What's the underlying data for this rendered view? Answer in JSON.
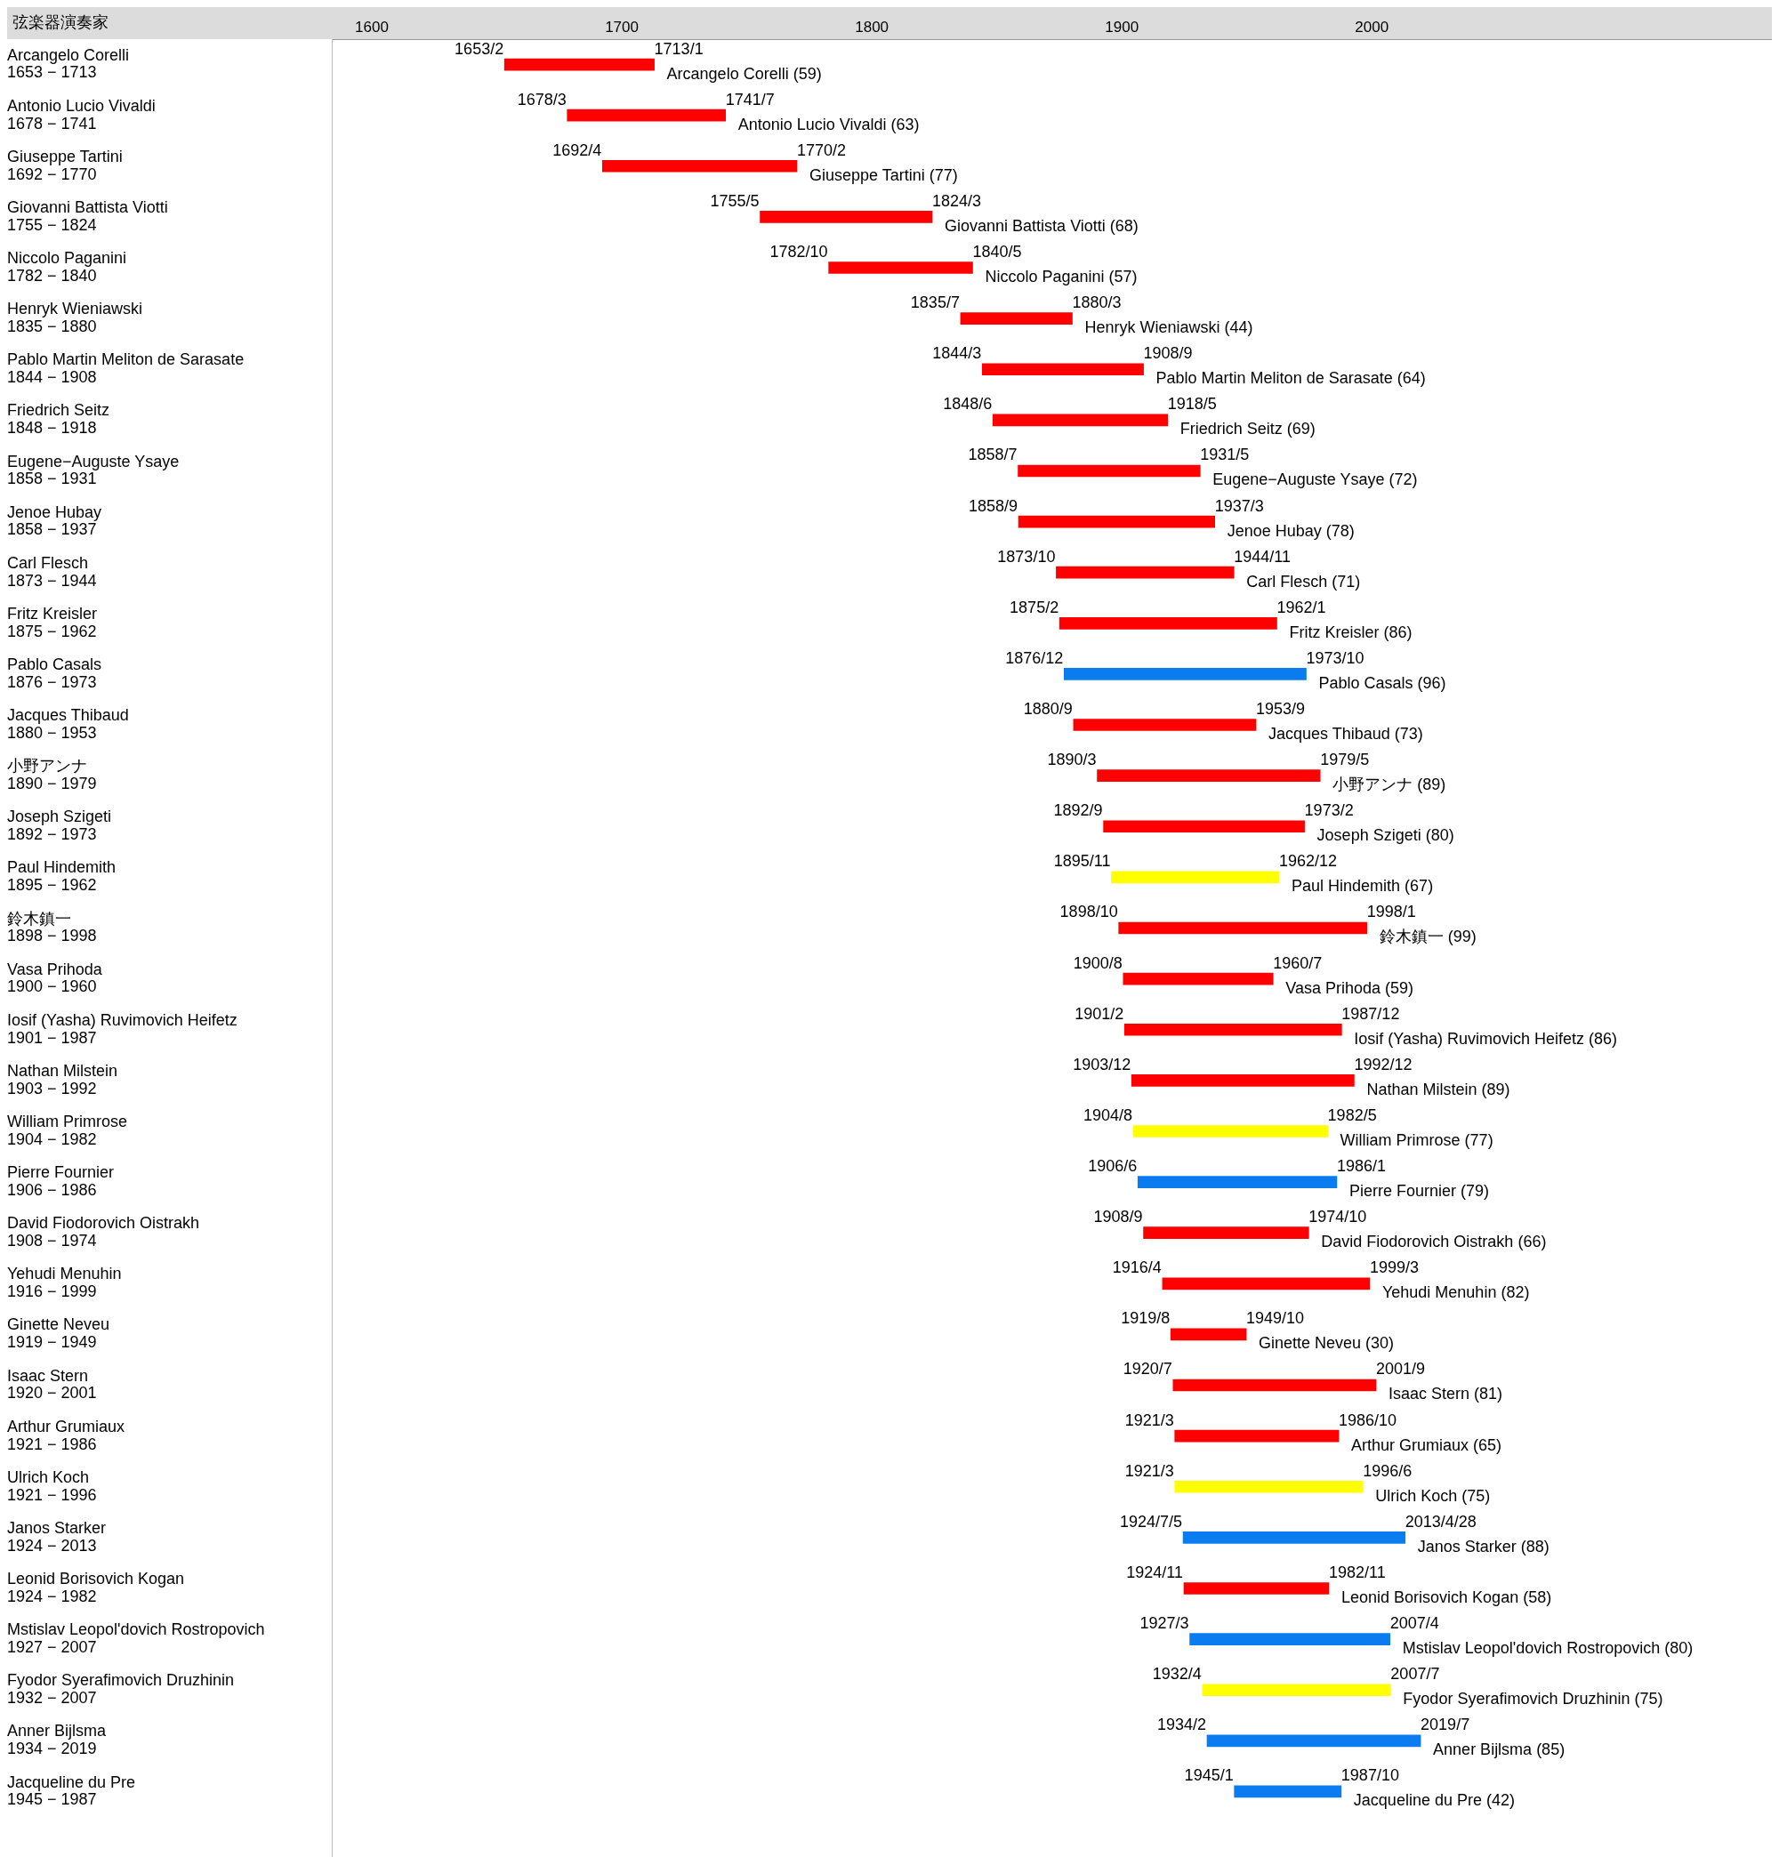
{
  "chart_data": {
    "type": "bar",
    "orientation": "horizontal",
    "ylabel": "弦楽器演奏家",
    "categories": [
      "Arcangelo Corelli\n1653 − 1713",
      "Antonio Lucio Vivaldi\n1678 − 1741",
      "Giuseppe Tartini\n1692 − 1770",
      "Giovanni Battista Viotti\n1755 − 1824",
      "Niccolo Paganini\n1782 − 1840",
      "Henryk Wieniawski\n1835 − 1880",
      "Pablo Martin Meliton de Sarasate\n1844 − 1908",
      "Friedrich Seitz\n1848 − 1918",
      "Eugene−Auguste Ysaye\n1858 − 1931",
      "Jenoe Hubay\n1858 − 1937",
      "Carl Flesch\n1873 − 1944",
      "Fritz Kreisler\n1875 − 1962",
      "Pablo Casals\n1876 − 1973",
      "Jacques Thibaud\n1880 − 1953",
      "小野アンナ\n1890 − 1979",
      "Joseph Szigeti\n1892 − 1973",
      "Paul Hindemith\n1895 − 1962",
      "鈴木鎮一\n1898 − 1998",
      "Vasa Prihoda\n1900 − 1960",
      "Iosif (Yasha) Ruvimovich Heifetz\n1901 − 1987",
      "Nathan Milstein\n1903 − 1992",
      "William Primrose\n1904 − 1982",
      "Pierre Fournier\n1906 − 1986",
      "David Fiodorovich Oistrakh\n1908 − 1974",
      "Yehudi Menuhin\n1916 − 1999",
      "Ginette Neveu\n1919 − 1949",
      "Isaac Stern\n1920 − 2001",
      "Arthur Grumiaux\n1921 − 1986",
      "Ulrich Koch\n1921 − 1996",
      "Janos Starker\n1924 − 2013",
      "Leonid Borisovich Kogan\n1924 − 1982",
      "Mstislav Leopol'dovich Rostropovich\n1927 − 2007",
      "Fyodor Syerafimovich Druzhinin\n1932 − 2007",
      "Anner Bijlsma\n1934 − 2019",
      "Jacqueline du Pre\n1945 − 1987"
    ],
    "base": [
      1653.08,
      1678.17,
      1692.25,
      1755.33,
      1782.75,
      1835.5,
      1844.17,
      1848.42,
      1858.5,
      1858.67,
      1873.75,
      1875.08,
      1876.92,
      1880.67,
      1890.17,
      1892.67,
      1895.83,
      1898.75,
      1900.58,
      1901.08,
      1903.92,
      1904.58,
      1906.42,
      1908.67,
      1916.25,
      1919.58,
      1920.5,
      1921.17,
      1921.17,
      1924.51,
      1924.83,
      1927.17,
      1932.25,
      1934.08,
      1945.0
    ],
    "values": [
      59.92,
      63.33,
      77.83,
      68.84,
      57.58,
      44.67,
      64.5,
      69.91,
      72.83,
      78.5,
      71.08,
      86.92,
      96.83,
      73,
      89.16,
      80.41,
      67.09,
      99.25,
      59.92,
      86.84,
      89,
      77.75,
      79.58,
      66.08,
      82.92,
      30.17,
      81.17,
      65.58,
      75.25,
      88.81,
      58,
      80.08,
      75.25,
      85.42,
      42.75
    ],
    "colors": [
      "#ff0000",
      "#ff0000",
      "#ff0000",
      "#ff0000",
      "#ff0000",
      "#ff0000",
      "#ff0000",
      "#ff0000",
      "#ff0000",
      "#ff0000",
      "#ff0000",
      "#ff0000",
      "#0a7cf0",
      "#ff0000",
      "#ff0000",
      "#ff0000",
      "#ffff00",
      "#ff0000",
      "#ff0000",
      "#ff0000",
      "#ff0000",
      "#ffff00",
      "#0a7cf0",
      "#ff0000",
      "#ff0000",
      "#ff0000",
      "#ff0000",
      "#ff0000",
      "#ffff00",
      "#0a7cf0",
      "#ff0000",
      "#0a7cf0",
      "#ffff00",
      "#0a7cf0",
      "#0a7cf0"
    ],
    "xlim": [
      1584,
      2160
    ],
    "xticks": [
      1600,
      1700,
      1800,
      1900,
      2000
    ],
    "annotations": [
      {
        "text": "1653/2",
        "x": 1653.08,
        "y": "Arcangelo Corelli\n1653 − 1713"
      },
      {
        "text": "1713/1",
        "x": 1713.0,
        "y": "Arcangelo Corelli\n1653 − 1713"
      },
      {
        "text": "Arcangelo Corelli (59)",
        "x": 1713.0,
        "y": "Arcangelo Corelli\n1653 − 1713"
      },
      {
        "text": "1678/3",
        "x": 1678.17,
        "y": "Antonio Lucio Vivaldi\n1678 − 1741"
      },
      {
        "text": "1741/7",
        "x": 1741.5,
        "y": "Antonio Lucio Vivaldi\n1678 − 1741"
      },
      {
        "text": "Antonio Lucio Vivaldi (63)",
        "x": 1741.5,
        "y": "Antonio Lucio Vivaldi\n1678 − 1741"
      },
      {
        "text": "1692/4",
        "x": 1692.25,
        "y": "Giuseppe Tartini\n1692 − 1770"
      },
      {
        "text": "1770/2",
        "x": 1770.08,
        "y": "Giuseppe Tartini\n1692 − 1770"
      },
      {
        "text": "Giuseppe Tartini (77)",
        "x": 1770.08,
        "y": "Giuseppe Tartini\n1692 − 1770"
      },
      {
        "text": "1755/5",
        "x": 1755.33,
        "y": "Giovanni Battista Viotti\n1755 − 1824"
      },
      {
        "text": "1824/3",
        "x": 1824.17,
        "y": "Giovanni Battista Viotti\n1755 − 1824"
      },
      {
        "text": "Giovanni Battista Viotti (68)",
        "x": 1824.17,
        "y": "Giovanni Battista Viotti\n1755 − 1824"
      },
      {
        "text": "1782/10",
        "x": 1782.75,
        "y": "Niccolo Paganini\n1782 − 1840"
      },
      {
        "text": "1840/5",
        "x": 1840.33,
        "y": "Niccolo Paganini\n1782 − 1840"
      },
      {
        "text": "Niccolo Paganini (57)",
        "x": 1840.33,
        "y": "Niccolo Paganini\n1782 − 1840"
      },
      {
        "text": "1835/7",
        "x": 1835.5,
        "y": "Henryk Wieniawski\n1835 − 1880"
      },
      {
        "text": "1880/3",
        "x": 1880.17,
        "y": "Henryk Wieniawski\n1835 − 1880"
      },
      {
        "text": "Henryk Wieniawski (44)",
        "x": 1880.17,
        "y": "Henryk Wieniawski\n1835 − 1880"
      },
      {
        "text": "1844/3",
        "x": 1844.17,
        "y": "Pablo Martin Meliton de Sarasate\n1844 − 1908"
      },
      {
        "text": "1908/9",
        "x": 1908.67,
        "y": "Pablo Martin Meliton de Sarasate\n1844 − 1908"
      },
      {
        "text": "Pablo Martin Meliton de Sarasate (64)",
        "x": 1908.67,
        "y": "Pablo Martin Meliton de Sarasate\n1844 − 1908"
      },
      {
        "text": "1848/6",
        "x": 1848.42,
        "y": "Friedrich Seitz\n1848 − 1918"
      },
      {
        "text": "1918/5",
        "x": 1918.33,
        "y": "Friedrich Seitz\n1848 − 1918"
      },
      {
        "text": "Friedrich Seitz (69)",
        "x": 1918.33,
        "y": "Friedrich Seitz\n1848 − 1918"
      },
      {
        "text": "1858/7",
        "x": 1858.5,
        "y": "Eugene−Auguste Ysaye\n1858 − 1931"
      },
      {
        "text": "1931/5",
        "x": 1931.33,
        "y": "Eugene−Auguste Ysaye\n1858 − 1931"
      },
      {
        "text": "Eugene−Auguste Ysaye (72)",
        "x": 1931.33,
        "y": "Eugene−Auguste Ysaye\n1858 − 1931"
      },
      {
        "text": "1858/9",
        "x": 1858.67,
        "y": "Jenoe Hubay\n1858 − 1937"
      },
      {
        "text": "1937/3",
        "x": 1937.17,
        "y": "Jenoe Hubay\n1858 − 1937"
      },
      {
        "text": "Jenoe Hubay (78)",
        "x": 1937.17,
        "y": "Jenoe Hubay\n1858 − 1937"
      },
      {
        "text": "1873/10",
        "x": 1873.75,
        "y": "Carl Flesch\n1873 − 1944"
      },
      {
        "text": "1944/11",
        "x": 1944.83,
        "y": "Carl Flesch\n1873 − 1944"
      },
      {
        "text": "Carl Flesch (71)",
        "x": 1944.83,
        "y": "Carl Flesch\n1873 − 1944"
      },
      {
        "text": "1875/2",
        "x": 1875.08,
        "y": "Fritz Kreisler\n1875 − 1962"
      },
      {
        "text": "1962/1",
        "x": 1962.0,
        "y": "Fritz Kreisler\n1875 − 1962"
      },
      {
        "text": "Fritz Kreisler (86)",
        "x": 1962.0,
        "y": "Fritz Kreisler\n1875 − 1962"
      },
      {
        "text": "1876/12",
        "x": 1876.92,
        "y": "Pablo Casals\n1876 − 1973"
      },
      {
        "text": "1973/10",
        "x": 1973.75,
        "y": "Pablo Casals\n1876 − 1973"
      },
      {
        "text": "Pablo Casals (96)",
        "x": 1973.75,
        "y": "Pablo Casals\n1876 − 1973"
      },
      {
        "text": "1880/9",
        "x": 1880.67,
        "y": "Jacques Thibaud\n1880 − 1953"
      },
      {
        "text": "1953/9",
        "x": 1953.67,
        "y": "Jacques Thibaud\n1880 − 1953"
      },
      {
        "text": "Jacques Thibaud (73)",
        "x": 1953.67,
        "y": "Jacques Thibaud\n1880 − 1953"
      },
      {
        "text": "1890/3",
        "x": 1890.17,
        "y": "小野アンナ\n1890 − 1979"
      },
      {
        "text": "1979/5",
        "x": 1979.33,
        "y": "小野アンナ\n1890 − 1979"
      },
      {
        "text": "小野アンナ (89)",
        "x": 1979.33,
        "y": "小野アンナ\n1890 − 1979"
      },
      {
        "text": "1892/9",
        "x": 1892.67,
        "y": "Joseph Szigeti\n1892 − 1973"
      },
      {
        "text": "1973/2",
        "x": 1973.08,
        "y": "Joseph Szigeti\n1892 − 1973"
      },
      {
        "text": "Joseph Szigeti (80)",
        "x": 1973.08,
        "y": "Joseph Szigeti\n1892 − 1973"
      },
      {
        "text": "1895/11",
        "x": 1895.83,
        "y": "Paul Hindemith\n1895 − 1962"
      },
      {
        "text": "1962/12",
        "x": 1962.92,
        "y": "Paul Hindemith\n1895 − 1962"
      },
      {
        "text": "Paul Hindemith (67)",
        "x": 1962.92,
        "y": "Paul Hindemith\n1895 − 1962"
      },
      {
        "text": "1898/10",
        "x": 1898.75,
        "y": "鈴木鎮一\n1898 − 1998"
      },
      {
        "text": "1998/1",
        "x": 1998.0,
        "y": "鈴木鎮一\n1898 − 1998"
      },
      {
        "text": "鈴木鎮一 (99)",
        "x": 1998.0,
        "y": "鈴木鎮一\n1898 − 1998"
      },
      {
        "text": "1900/8",
        "x": 1900.58,
        "y": "Vasa Prihoda\n1900 − 1960"
      },
      {
        "text": "1960/7",
        "x": 1960.5,
        "y": "Vasa Prihoda\n1900 − 1960"
      },
      {
        "text": "Vasa Prihoda (59)",
        "x": 1960.5,
        "y": "Vasa Prihoda\n1900 − 1960"
      },
      {
        "text": "1901/2",
        "x": 1901.08,
        "y": "Iosif (Yasha) Ruvimovich Heifetz\n1901 − 1987"
      },
      {
        "text": "1987/12",
        "x": 1987.92,
        "y": "Iosif (Yasha) Ruvimovich Heifetz\n1901 − 1987"
      },
      {
        "text": "Iosif (Yasha) Ruvimovich Heifetz (86)",
        "x": 1987.92,
        "y": "Iosif (Yasha) Ruvimovich Heifetz\n1901 − 1987"
      },
      {
        "text": "1903/12",
        "x": 1903.92,
        "y": "Nathan Milstein\n1903 − 1992"
      },
      {
        "text": "1992/12",
        "x": 1992.92,
        "y": "Nathan Milstein\n1903 − 1992"
      },
      {
        "text": "Nathan Milstein (89)",
        "x": 1992.92,
        "y": "Nathan Milstein\n1903 − 1992"
      },
      {
        "text": "1904/8",
        "x": 1904.58,
        "y": "William Primrose\n1904 − 1982"
      },
      {
        "text": "1982/5",
        "x": 1982.33,
        "y": "William Primrose\n1904 − 1982"
      },
      {
        "text": "William Primrose (77)",
        "x": 1982.33,
        "y": "William Primrose\n1904 − 1982"
      },
      {
        "text": "1906/6",
        "x": 1906.42,
        "y": "Pierre Fournier\n1906 − 1986"
      },
      {
        "text": "1986/1",
        "x": 1986.0,
        "y": "Pierre Fournier\n1906 − 1986"
      },
      {
        "text": "Pierre Fournier (79)",
        "x": 1986.0,
        "y": "Pierre Fournier\n1906 − 1986"
      },
      {
        "text": "1908/9",
        "x": 1908.67,
        "y": "David Fiodorovich Oistrakh\n1908 − 1974"
      },
      {
        "text": "1974/10",
        "x": 1974.75,
        "y": "David Fiodorovich Oistrakh\n1908 − 1974"
      },
      {
        "text": "David Fiodorovich Oistrakh (66)",
        "x": 1974.75,
        "y": "David Fiodorovich Oistrakh\n1908 − 1974"
      },
      {
        "text": "1916/4",
        "x": 1916.25,
        "y": "Yehudi Menuhin\n1916 − 1999"
      },
      {
        "text": "1999/3",
        "x": 1999.17,
        "y": "Yehudi Menuhin\n1916 − 1999"
      },
      {
        "text": "Yehudi Menuhin (82)",
        "x": 1999.17,
        "y": "Yehudi Menuhin\n1916 − 1999"
      },
      {
        "text": "1919/8",
        "x": 1919.58,
        "y": "Ginette Neveu\n1919 − 1949"
      },
      {
        "text": "1949/10",
        "x": 1949.75,
        "y": "Ginette Neveu\n1919 − 1949"
      },
      {
        "text": "Ginette Neveu (30)",
        "x": 1949.75,
        "y": "Ginette Neveu\n1919 − 1949"
      },
      {
        "text": "1920/7",
        "x": 1920.5,
        "y": "Isaac Stern\n1920 − 2001"
      },
      {
        "text": "2001/9",
        "x": 2001.67,
        "y": "Isaac Stern\n1920 − 2001"
      },
      {
        "text": "Isaac Stern (81)",
        "x": 2001.67,
        "y": "Isaac Stern\n1920 − 2001"
      },
      {
        "text": "1921/3",
        "x": 1921.17,
        "y": "Arthur Grumiaux\n1921 − 1986"
      },
      {
        "text": "1986/10",
        "x": 1986.75,
        "y": "Arthur Grumiaux\n1921 − 1986"
      },
      {
        "text": "Arthur Grumiaux (65)",
        "x": 1986.75,
        "y": "Arthur Grumiaux\n1921 − 1986"
      },
      {
        "text": "1921/3",
        "x": 1921.17,
        "y": "Ulrich Koch\n1921 − 1996"
      },
      {
        "text": "1996/6",
        "x": 1996.42,
        "y": "Ulrich Koch\n1921 − 1996"
      },
      {
        "text": "Ulrich Koch (75)",
        "x": 1996.42,
        "y": "Ulrich Koch\n1921 − 1996"
      },
      {
        "text": "1924/7/5",
        "x": 1924.51,
        "y": "Janos Starker\n1924 − 2013"
      },
      {
        "text": "2013/4/28",
        "x": 2013.32,
        "y": "Janos Starker\n1924 − 2013"
      },
      {
        "text": "Janos Starker (88)",
        "x": 2013.32,
        "y": "Janos Starker\n1924 − 2013"
      },
      {
        "text": "1924/11",
        "x": 1924.83,
        "y": "Leonid Borisovich Kogan\n1924 − 1982"
      },
      {
        "text": "1982/11",
        "x": 1982.83,
        "y": "Leonid Borisovich Kogan\n1924 − 1982"
      },
      {
        "text": "Leonid Borisovich Kogan (58)",
        "x": 1982.83,
        "y": "Leonid Borisovich Kogan\n1924 − 1982"
      },
      {
        "text": "1927/3",
        "x": 1927.17,
        "y": "Mstislav Leopol'dovich Rostropovich\n1927 − 2007"
      },
      {
        "text": "2007/4",
        "x": 2007.25,
        "y": "Mstislav Leopol'dovich Rostropovich\n1927 − 2007"
      },
      {
        "text": "Mstislav Leopol'dovich Rostropovich (80)",
        "x": 2007.25,
        "y": "Mstislav Leopol'dovich Rostropovich\n1927 − 2007"
      },
      {
        "text": "1932/4",
        "x": 1932.25,
        "y": "Fyodor Syerafimovich Druzhinin\n1932 − 2007"
      },
      {
        "text": "2007/7",
        "x": 2007.5,
        "y": "Fyodor Syerafimovich Druzhinin\n1932 − 2007"
      },
      {
        "text": "Fyodor Syerafimovich Druzhinin (75)",
        "x": 2007.5,
        "y": "Fyodor Syerafimovich Druzhinin\n1932 − 2007"
      },
      {
        "text": "1934/2",
        "x": 1934.08,
        "y": "Anner Bijlsma\n1934 − 2019"
      },
      {
        "text": "2019/7",
        "x": 2019.5,
        "y": "Anner Bijlsma\n1934 − 2019"
      },
      {
        "text": "Anner Bijlsma (85)",
        "x": 2019.5,
        "y": "Anner Bijlsma\n1934 − 2019"
      },
      {
        "text": "1945/1",
        "x": 1945.0,
        "y": "Jacqueline du Pre\n1945 − 1987"
      },
      {
        "text": "1987/10",
        "x": 1987.75,
        "y": "Jacqueline du Pre\n1945 − 1987"
      },
      {
        "text": "Jacqueline du Pre (42)",
        "x": 1987.75,
        "y": "Jacqueline du Pre\n1945 − 1987"
      }
    ]
  }
}
